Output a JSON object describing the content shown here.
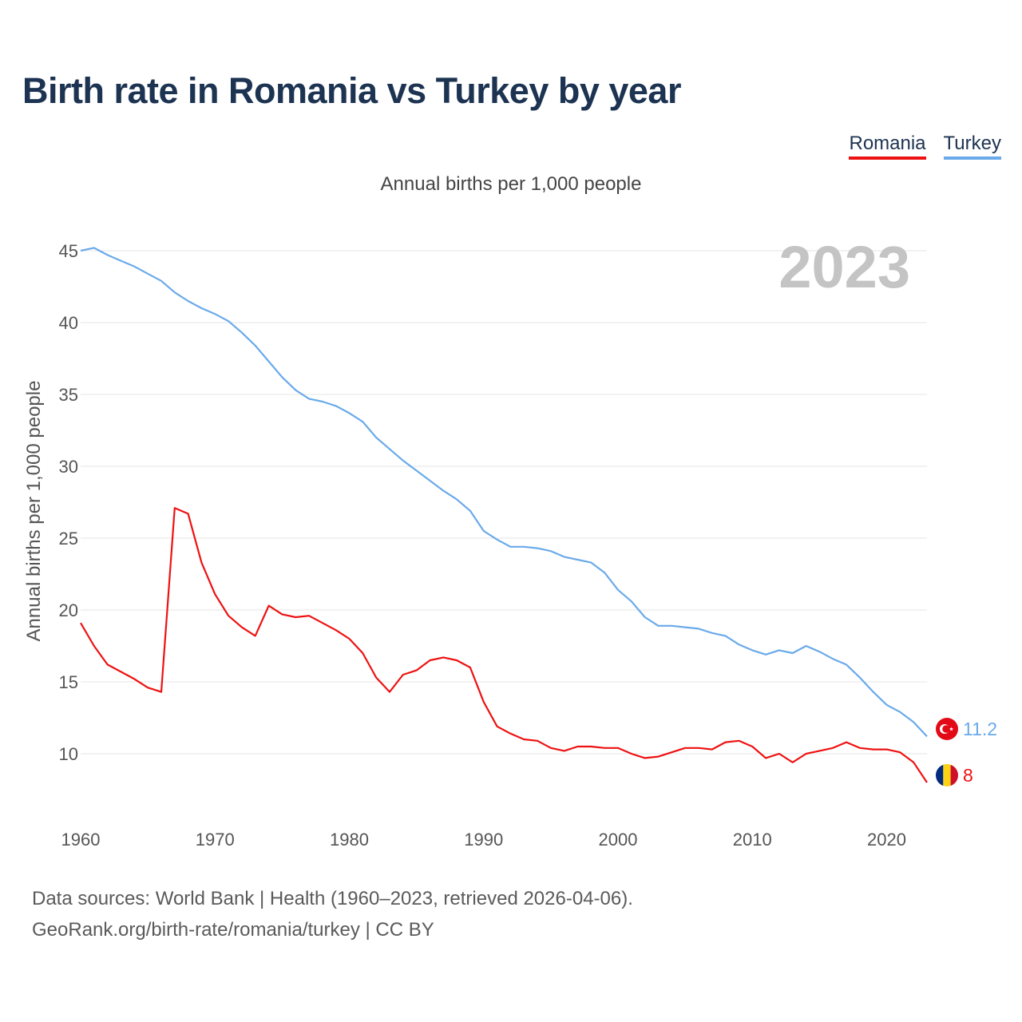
{
  "title": "Birth rate in Romania vs Turkey by year",
  "subtitle": "Annual births per 1,000 people",
  "legend": [
    {
      "label": "Romania",
      "color": "#ee1111"
    },
    {
      "label": "Turkey",
      "color": "#6aaaea"
    }
  ],
  "year_label": "2023",
  "sources": {
    "line1": "Data sources: World Bank | Health (1960–2023, retrieved 2026-04-06).",
    "line2": "GeoRank.org/birth-rate/romania/turkey | CC BY"
  },
  "chart_data": {
    "type": "line",
    "title": "Birth rate in Romania vs Turkey by year",
    "ylabel": "Annual births per 1,000 people",
    "xlabel": "",
    "xlim": [
      1960,
      2023
    ],
    "ylim": [
      5.5,
      45
    ],
    "xticks": [
      1960,
      1970,
      1980,
      1990,
      2000,
      2010,
      2020
    ],
    "yticks": [
      10,
      15,
      20,
      25,
      30,
      35,
      40,
      45
    ],
    "grid": true,
    "x": [
      1960,
      1961,
      1962,
      1963,
      1964,
      1965,
      1966,
      1967,
      1968,
      1969,
      1970,
      1971,
      1972,
      1973,
      1974,
      1975,
      1976,
      1977,
      1978,
      1979,
      1980,
      1981,
      1982,
      1983,
      1984,
      1985,
      1986,
      1987,
      1988,
      1989,
      1990,
      1991,
      1992,
      1993,
      1994,
      1995,
      1996,
      1997,
      1998,
      1999,
      2000,
      2001,
      2002,
      2003,
      2004,
      2005,
      2006,
      2007,
      2008,
      2009,
      2010,
      2011,
      2012,
      2013,
      2014,
      2015,
      2016,
      2017,
      2018,
      2019,
      2020,
      2021,
      2022,
      2023
    ],
    "series": [
      {
        "name": "Romania",
        "color": "#ee1111",
        "end_label": "8",
        "flag": "Romania",
        "values": [
          19.1,
          17.5,
          16.2,
          15.7,
          15.2,
          14.6,
          14.3,
          27.1,
          26.7,
          23.3,
          21.1,
          19.6,
          18.8,
          18.2,
          20.3,
          19.7,
          19.5,
          19.6,
          19.1,
          18.6,
          18.0,
          17.0,
          15.3,
          14.3,
          15.5,
          15.8,
          16.5,
          16.7,
          16.5,
          16.0,
          13.6,
          11.9,
          11.4,
          11.0,
          10.9,
          10.4,
          10.2,
          10.5,
          10.5,
          10.4,
          10.4,
          10.0,
          9.7,
          9.8,
          10.1,
          10.4,
          10.4,
          10.3,
          10.8,
          10.9,
          10.5,
          9.7,
          10.0,
          9.4,
          10.0,
          10.2,
          10.4,
          10.8,
          10.4,
          10.3,
          10.3,
          10.1,
          9.4,
          8.0
        ]
      },
      {
        "name": "Turkey",
        "color": "#6aaaea",
        "end_label": "11.2",
        "flag": "Turkey",
        "values": [
          45.0,
          45.2,
          44.7,
          44.3,
          43.9,
          43.4,
          42.9,
          42.1,
          41.5,
          41.0,
          40.6,
          40.1,
          39.3,
          38.4,
          37.3,
          36.2,
          35.3,
          34.7,
          34.5,
          34.2,
          33.7,
          33.1,
          32.0,
          31.2,
          30.4,
          29.7,
          29.0,
          28.3,
          27.7,
          26.9,
          25.5,
          24.9,
          24.4,
          24.4,
          24.3,
          24.1,
          23.7,
          23.5,
          23.3,
          22.6,
          21.4,
          20.6,
          19.5,
          18.9,
          18.9,
          18.8,
          18.7,
          18.4,
          18.2,
          17.6,
          17.2,
          16.9,
          17.2,
          17.0,
          17.5,
          17.1,
          16.6,
          16.2,
          15.3,
          14.3,
          13.4,
          12.9,
          12.2,
          11.2
        ]
      }
    ]
  }
}
